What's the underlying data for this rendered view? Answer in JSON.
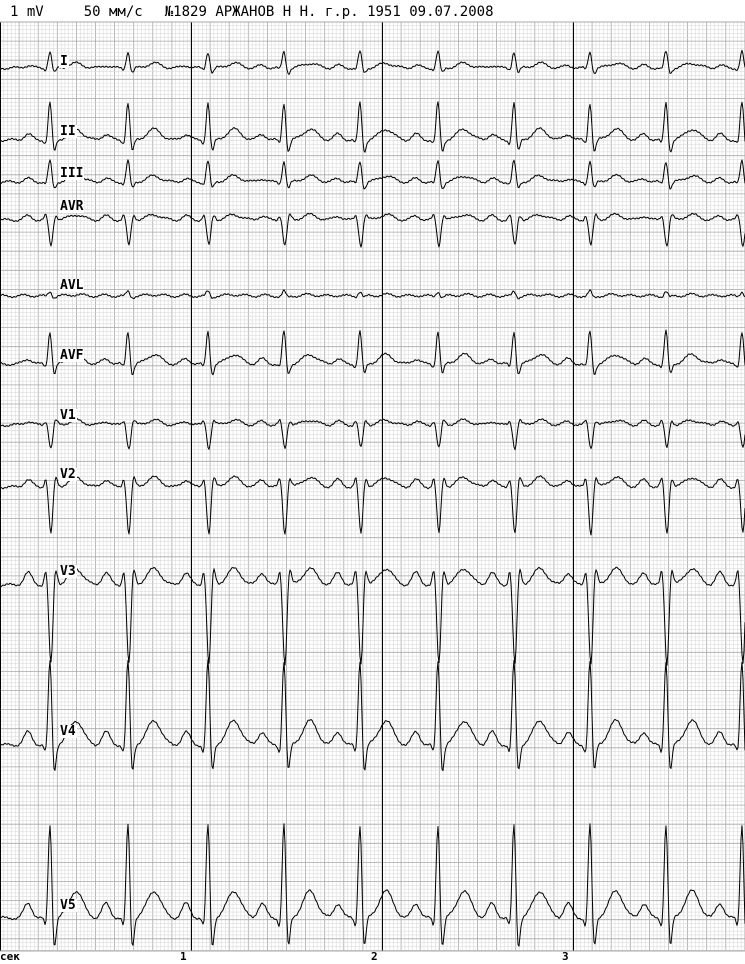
{
  "header": {
    "calibration": "1 mV",
    "speed": "50 мм/с",
    "record_number": "№1829",
    "patient": "АРЖАНОВ Н Н.",
    "birth_year": "г.р. 1951",
    "date": "09.07.2008"
  },
  "leads": [
    {
      "label": "I",
      "amp": 0.35,
      "inverted": false
    },
    {
      "label": "II",
      "amp": 0.8,
      "inverted": false
    },
    {
      "label": "III",
      "amp": 0.45,
      "inverted": false
    },
    {
      "label": "AVR",
      "amp": 0.55,
      "inverted": true
    },
    {
      "label": "AVL",
      "amp": 0.1,
      "inverted": false
    },
    {
      "label": "AVF",
      "amp": 0.7,
      "inverted": false
    },
    {
      "label": "V1",
      "amp": 0.5,
      "inverted": true
    },
    {
      "label": "V2",
      "amp": 1.0,
      "inverted": true
    },
    {
      "label": "V3",
      "amp": 1.7,
      "inverted": true
    },
    {
      "label": "V4",
      "amp": 1.8,
      "inverted": false
    },
    {
      "label": "V5",
      "amp": 2.0,
      "inverted": false
    }
  ],
  "time_axis": {
    "unit": "сек",
    "ticks": [
      "1",
      "2",
      "3"
    ]
  },
  "colors": {
    "grid_minor": "#d4d4d4",
    "grid_major": "#a8a8a8",
    "grid_second": "#000000",
    "trace": "#000000"
  }
}
